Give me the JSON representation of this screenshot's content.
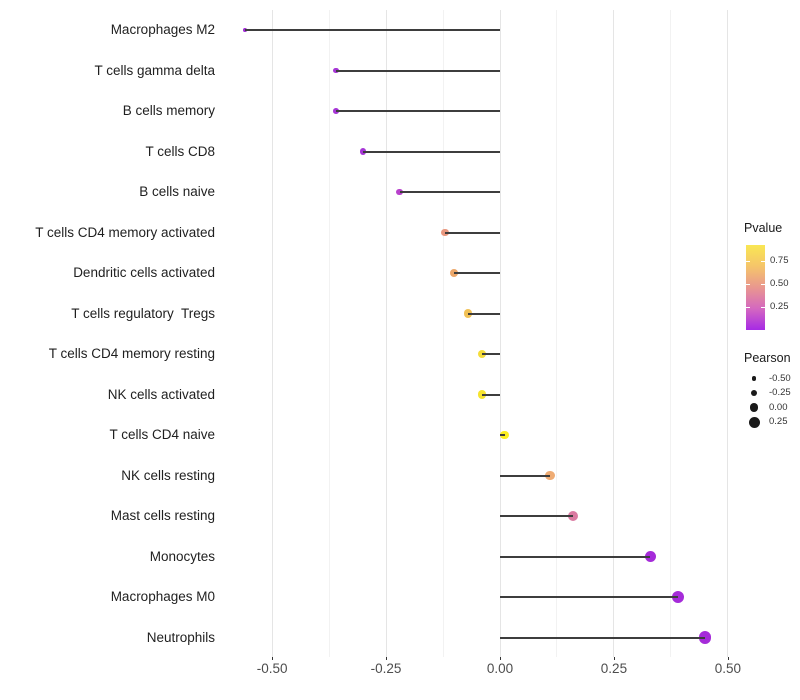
{
  "chart_data": {
    "type": "scatter",
    "subtype": "lollipop",
    "title": "",
    "xlabel": "",
    "ylabel": "",
    "x_tick_labels": [
      "-0.50",
      "-0.25",
      "0.00",
      "0.25",
      "0.50"
    ],
    "x_tick_values": [
      -0.5,
      -0.25,
      0,
      0.25,
      0.5
    ],
    "x_minor_tick_values": [
      -0.375,
      -0.125,
      0.125,
      0.375
    ],
    "xlim": [
      -0.61,
      0.52
    ],
    "grid": "vertical-major-and-minor",
    "baseline_x": 0,
    "points": [
      {
        "label": "Macrophages M2",
        "pearson": -0.56,
        "pvalue": 0.01,
        "color": "#a02bd6"
      },
      {
        "label": "T cells gamma delta",
        "pearson": -0.36,
        "pvalue": 0.05,
        "color": "#a636d6"
      },
      {
        "label": "B cells memory",
        "pearson": -0.36,
        "pvalue": 0.05,
        "color": "#a636d6"
      },
      {
        "label": "T cells CD8",
        "pearson": -0.3,
        "pvalue": 0.07,
        "color": "#a636d6"
      },
      {
        "label": "B cells naive",
        "pearson": -0.22,
        "pvalue": 0.12,
        "color": "#b841cc"
      },
      {
        "label": "T cells CD4 memory activated",
        "pearson": -0.12,
        "pvalue": 0.55,
        "color": "#e9987f"
      },
      {
        "label": "Dendritic cells activated",
        "pearson": -0.1,
        "pvalue": 0.65,
        "color": "#eca76a"
      },
      {
        "label": "T cells regulatory  Tregs",
        "pearson": -0.07,
        "pvalue": 0.75,
        "color": "#f1c156"
      },
      {
        "label": "T cells CD4 memory resting",
        "pearson": -0.04,
        "pvalue": 0.84,
        "color": "#f5dd3b"
      },
      {
        "label": "NK cells activated",
        "pearson": -0.04,
        "pvalue": 0.87,
        "color": "#f6e42f"
      },
      {
        "label": "T cells CD4 naive",
        "pearson": 0.01,
        "pvalue": 0.92,
        "color": "#fbee22"
      },
      {
        "label": "NK cells resting",
        "pearson": 0.11,
        "pvalue": 0.62,
        "color": "#efac74"
      },
      {
        "label": "Mast cells resting",
        "pearson": 0.16,
        "pvalue": 0.42,
        "color": "#da7aa1"
      },
      {
        "label": "Monocytes",
        "pearson": 0.33,
        "pvalue": 0.04,
        "color": "#a52bd9"
      },
      {
        "label": "Macrophages M0",
        "pearson": 0.39,
        "pvalue": 0.03,
        "color": "#a52bd9"
      },
      {
        "label": "Neutrophils",
        "pearson": 0.45,
        "pvalue": 0.02,
        "color": "#a52bd9"
      }
    ],
    "legend": {
      "pvalue": {
        "title": "Pvalue",
        "tick_labels": [
          "0.75",
          "0.50",
          "0.25"
        ],
        "tick_values": [
          0.75,
          0.5,
          0.25
        ],
        "range": [
          0,
          0.92
        ],
        "gradient_top_to_bottom": [
          "#f9e753",
          "#f5c56a",
          "#e9978f",
          "#d468c0",
          "#a62ae5"
        ]
      },
      "pearson": {
        "title": "Pearson",
        "entries": [
          {
            "label": "-0.50",
            "value": -0.5
          },
          {
            "label": "-0.25",
            "value": -0.25
          },
          {
            "label": "0.00",
            "value": 0
          },
          {
            "label": "0.25",
            "value": 0.25
          }
        ],
        "dot_color": "#1a1a1a"
      },
      "position": "right"
    },
    "colors": {
      "segment": "#3d3d3d",
      "grid_major": "#e5e5e5",
      "grid_minor": "#f2f2f2",
      "axis_text": "#4d4d4d",
      "category_text": "#1f1f1f",
      "background": "#ffffff"
    }
  }
}
